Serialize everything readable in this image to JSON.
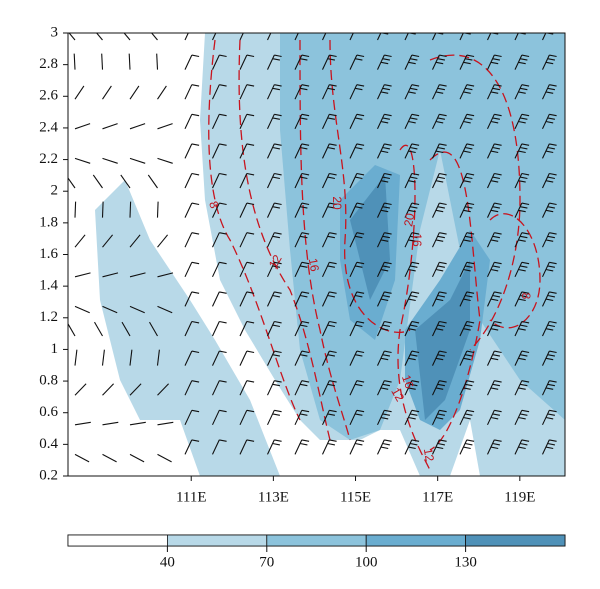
{
  "chart_data": {
    "type": "contour",
    "xlim": [
      108,
      120.1
    ],
    "xticks": [
      {
        "value": 111,
        "label": "111E"
      },
      {
        "value": 113,
        "label": "113E"
      },
      {
        "value": 115,
        "label": "115E"
      },
      {
        "value": 117,
        "label": "117E"
      },
      {
        "value": 119,
        "label": "119E"
      }
    ],
    "ylim": [
      0.2,
      3
    ],
    "yticks": [
      0.2,
      0.4,
      0.6,
      0.8,
      1,
      1.2,
      1.4,
      1.6,
      1.8,
      2,
      2.2,
      2.4,
      2.6,
      2.8,
      3
    ],
    "colorbar": {
      "lim": [
        10,
        160
      ],
      "ticks": [
        40,
        70,
        100,
        130
      ],
      "colors": [
        "#ffffff",
        "#b8d9e8",
        "#8cc3dc",
        "#6aadd0",
        "#4f91b8"
      ]
    },
    "contour_labels": [
      8,
      12,
      16,
      20,
      20,
      16,
      16,
      12,
      12,
      8
    ]
  }
}
